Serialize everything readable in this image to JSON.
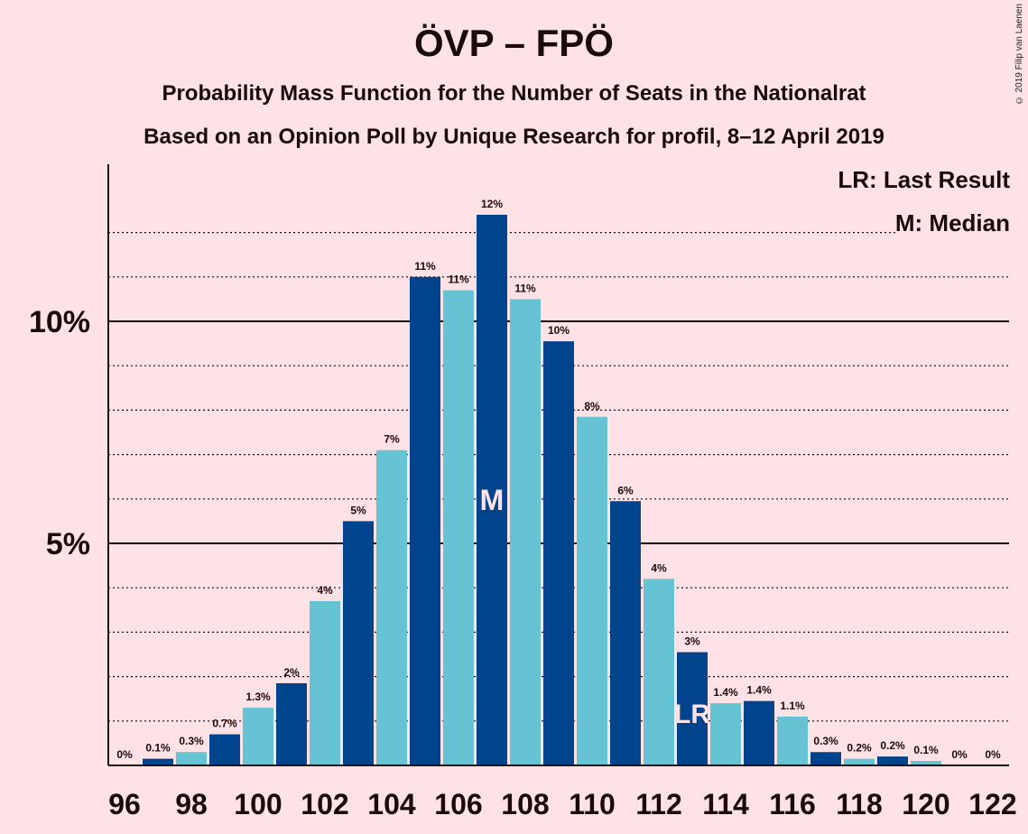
{
  "title": "ÖVP – FPÖ",
  "subtitle1": "Probability Mass Function for the Number of Seats in the Nationalrat",
  "subtitle2": "Based on an Opinion Poll by Unique Research for profil, 8–12 April 2019",
  "copyright": "© 2019 Filip van Laenen",
  "legend": {
    "last_result": "LR: Last Result",
    "median": "M: Median"
  },
  "colors": {
    "background": "#FFE2E5",
    "dark_bar": "#00448E",
    "light_bar": "#66C3D3",
    "text": "#1a0a0a"
  },
  "chart_data": {
    "type": "bar",
    "xlabel": "",
    "ylabel": "",
    "ylim": [
      0,
      13.5
    ],
    "y_ticks": [
      {
        "value": 5,
        "label": "5%"
      },
      {
        "value": 10,
        "label": "10%"
      }
    ],
    "x_tick_labels": [
      "96",
      "98",
      "100",
      "102",
      "104",
      "106",
      "108",
      "110",
      "112",
      "114",
      "116",
      "118",
      "120",
      "122"
    ],
    "seats": [
      96,
      97,
      98,
      99,
      100,
      101,
      102,
      103,
      104,
      105,
      106,
      107,
      108,
      109,
      110,
      111,
      112,
      113,
      114,
      115,
      116,
      117,
      118,
      119,
      120,
      121,
      122
    ],
    "values": [
      0,
      0.15,
      0.3,
      0.7,
      1.3,
      1.85,
      3.7,
      5.5,
      7.1,
      11.0,
      10.7,
      12.4,
      10.5,
      9.55,
      7.85,
      5.95,
      4.2,
      2.55,
      1.4,
      1.45,
      1.1,
      0.3,
      0.15,
      0.2,
      0.1,
      0,
      0
    ],
    "data_labels": [
      "0%",
      "0.1%",
      "0.3%",
      "0.7%",
      "1.3%",
      "2%",
      "4%",
      "5%",
      "7%",
      "11%",
      "11%",
      "12%",
      "11%",
      "10%",
      "8%",
      "6%",
      "4%",
      "3%",
      "1.4%",
      "1.4%",
      "1.1%",
      "0.3%",
      "0.2%",
      "0.2%",
      "0.1%",
      "0%",
      "0%"
    ],
    "median_seat": 107,
    "median_label": "M",
    "last_result_seat": 113,
    "last_result_label": "LR",
    "grid": true
  }
}
